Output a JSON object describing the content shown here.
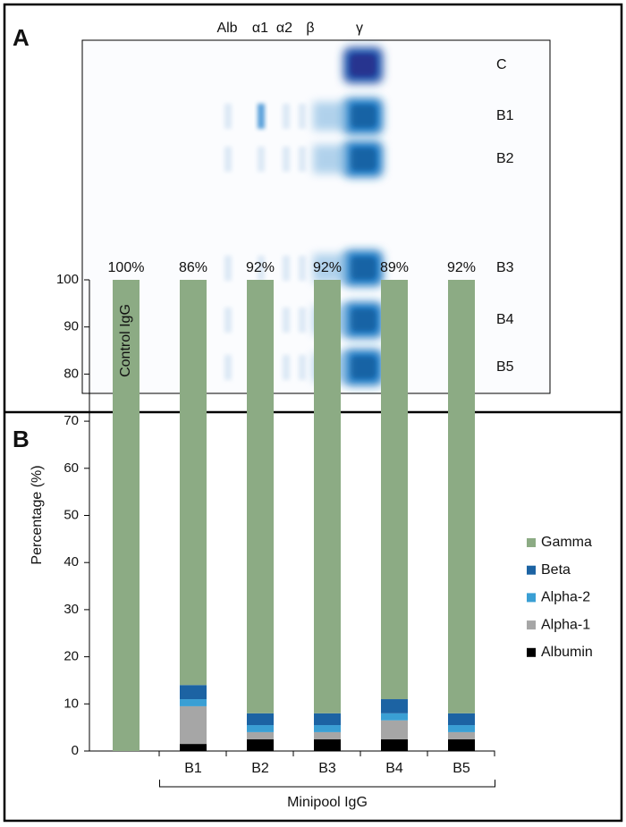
{
  "gel": {
    "panel_label": "A",
    "lanes": [
      "Alb",
      "α1",
      "α2",
      "β",
      "γ"
    ],
    "rows": [
      "C",
      "B1",
      "B2",
      "B3",
      "B4",
      "B5"
    ]
  },
  "chart_data": {
    "type": "stacked_bar",
    "panel_label": "B",
    "y_label": "Percentage (%)",
    "categories": [
      null,
      "B1",
      "B2",
      "B3",
      "B4",
      "B5"
    ],
    "group_label": "Minipool IgG",
    "bar_annotation": "Control IgG",
    "series": [
      {
        "name": "Albumin",
        "color": "#000000",
        "values": [
          0,
          1.5,
          2.5,
          2.5,
          2.5,
          2.5
        ]
      },
      {
        "name": "Alpha-1",
        "color": "#a6a6a6",
        "values": [
          0,
          8,
          1.5,
          1.5,
          4,
          1.5
        ]
      },
      {
        "name": "Alpha-2",
        "color": "#3a9fd4",
        "values": [
          0,
          1.5,
          1.5,
          1.5,
          1.5,
          1.5
        ]
      },
      {
        "name": "Beta",
        "color": "#1c63a3",
        "values": [
          0,
          3,
          2.5,
          2.5,
          3,
          2.5
        ]
      },
      {
        "name": "Gamma",
        "color": "#8cab84",
        "values": [
          100,
          86,
          92,
          92,
          89,
          92
        ],
        "value_labels": [
          "100%",
          "86%",
          "92%",
          "92%",
          "89%",
          "92%"
        ]
      }
    ],
    "ylim": [
      0,
      100
    ],
    "yticks": [
      0,
      10,
      20,
      30,
      40,
      50,
      60,
      70,
      80,
      90,
      100
    ],
    "grid": false,
    "legend": "right"
  }
}
